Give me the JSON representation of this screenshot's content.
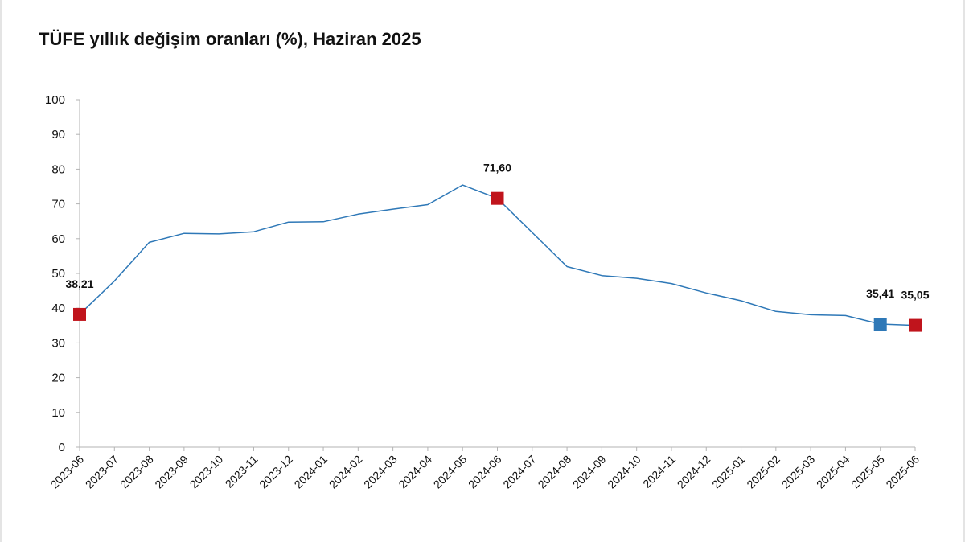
{
  "chart_data": {
    "type": "line",
    "title": "TÜFE yıllık değişim oranları (%), Haziran 2025",
    "xlabel": "",
    "ylabel": "",
    "ylim": [
      0,
      100
    ],
    "yticks": [
      0,
      10,
      20,
      30,
      40,
      50,
      60,
      70,
      80,
      90,
      100
    ],
    "grid": false,
    "legend": "none",
    "categories": [
      "2023-06",
      "2023-07",
      "2023-08",
      "2023-09",
      "2023-10",
      "2023-11",
      "2023-12",
      "2024-01",
      "2024-02",
      "2024-03",
      "2024-04",
      "2024-05",
      "2024-06",
      "2024-07",
      "2024-08",
      "2024-09",
      "2024-10",
      "2024-11",
      "2024-12",
      "2025-01",
      "2025-02",
      "2025-03",
      "2025-04",
      "2025-05",
      "2025-06"
    ],
    "series": [
      {
        "values": [
          38.21,
          47.83,
          58.94,
          61.53,
          61.36,
          61.98,
          64.77,
          64.86,
          67.07,
          68.5,
          69.8,
          75.45,
          71.6,
          61.78,
          51.97,
          49.38,
          48.58,
          47.09,
          44.38,
          42.12,
          39.05,
          38.1,
          37.86,
          35.41,
          35.05
        ],
        "color": "#2e78b7"
      }
    ],
    "markers": [
      {
        "category": "2023-06",
        "value": 38.21,
        "label": "38,21",
        "color": "#c0141c"
      },
      {
        "category": "2024-06",
        "value": 71.6,
        "label": "71,60",
        "color": "#c0141c"
      },
      {
        "category": "2025-05",
        "value": 35.41,
        "label": "35,41",
        "color": "#2e78b7"
      },
      {
        "category": "2025-06",
        "value": 35.05,
        "label": "35,05",
        "color": "#c0141c"
      }
    ],
    "colors": {
      "axis": "#b3b3b3",
      "text": "#111111"
    }
  }
}
